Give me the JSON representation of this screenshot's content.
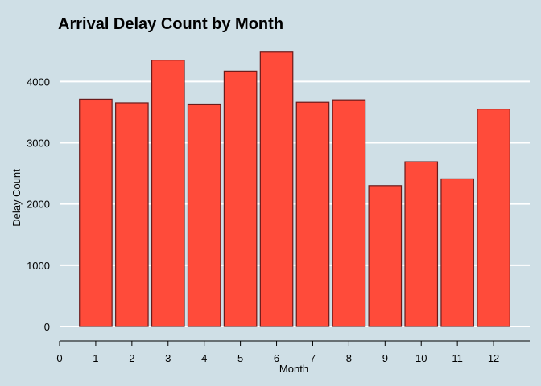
{
  "chart_data": {
    "type": "bar",
    "title": "Arrival Delay Count by Month",
    "xlabel": "Month",
    "ylabel": "Delay Count",
    "categories": [
      1,
      2,
      3,
      4,
      5,
      6,
      7,
      8,
      9,
      10,
      11,
      12
    ],
    "values": [
      3710,
      3650,
      4350,
      3630,
      4170,
      4480,
      3660,
      3700,
      2300,
      2690,
      2410,
      3550
    ],
    "xlim": [
      0,
      13
    ],
    "x_ticks": [
      "0",
      "1",
      "2",
      "3",
      "4",
      "5",
      "6",
      "7",
      "8",
      "9",
      "10",
      "11",
      "12"
    ],
    "ylim": [
      0,
      4700
    ],
    "y_ticks": [
      "0",
      "1000",
      "2000",
      "3000",
      "4000"
    ],
    "grid": "horizontal",
    "bar_color": "#ff4b3a",
    "bar_edge_color": "#6b1a1a",
    "background_color": "#cfdfe6",
    "grid_color": "#ffffff"
  }
}
